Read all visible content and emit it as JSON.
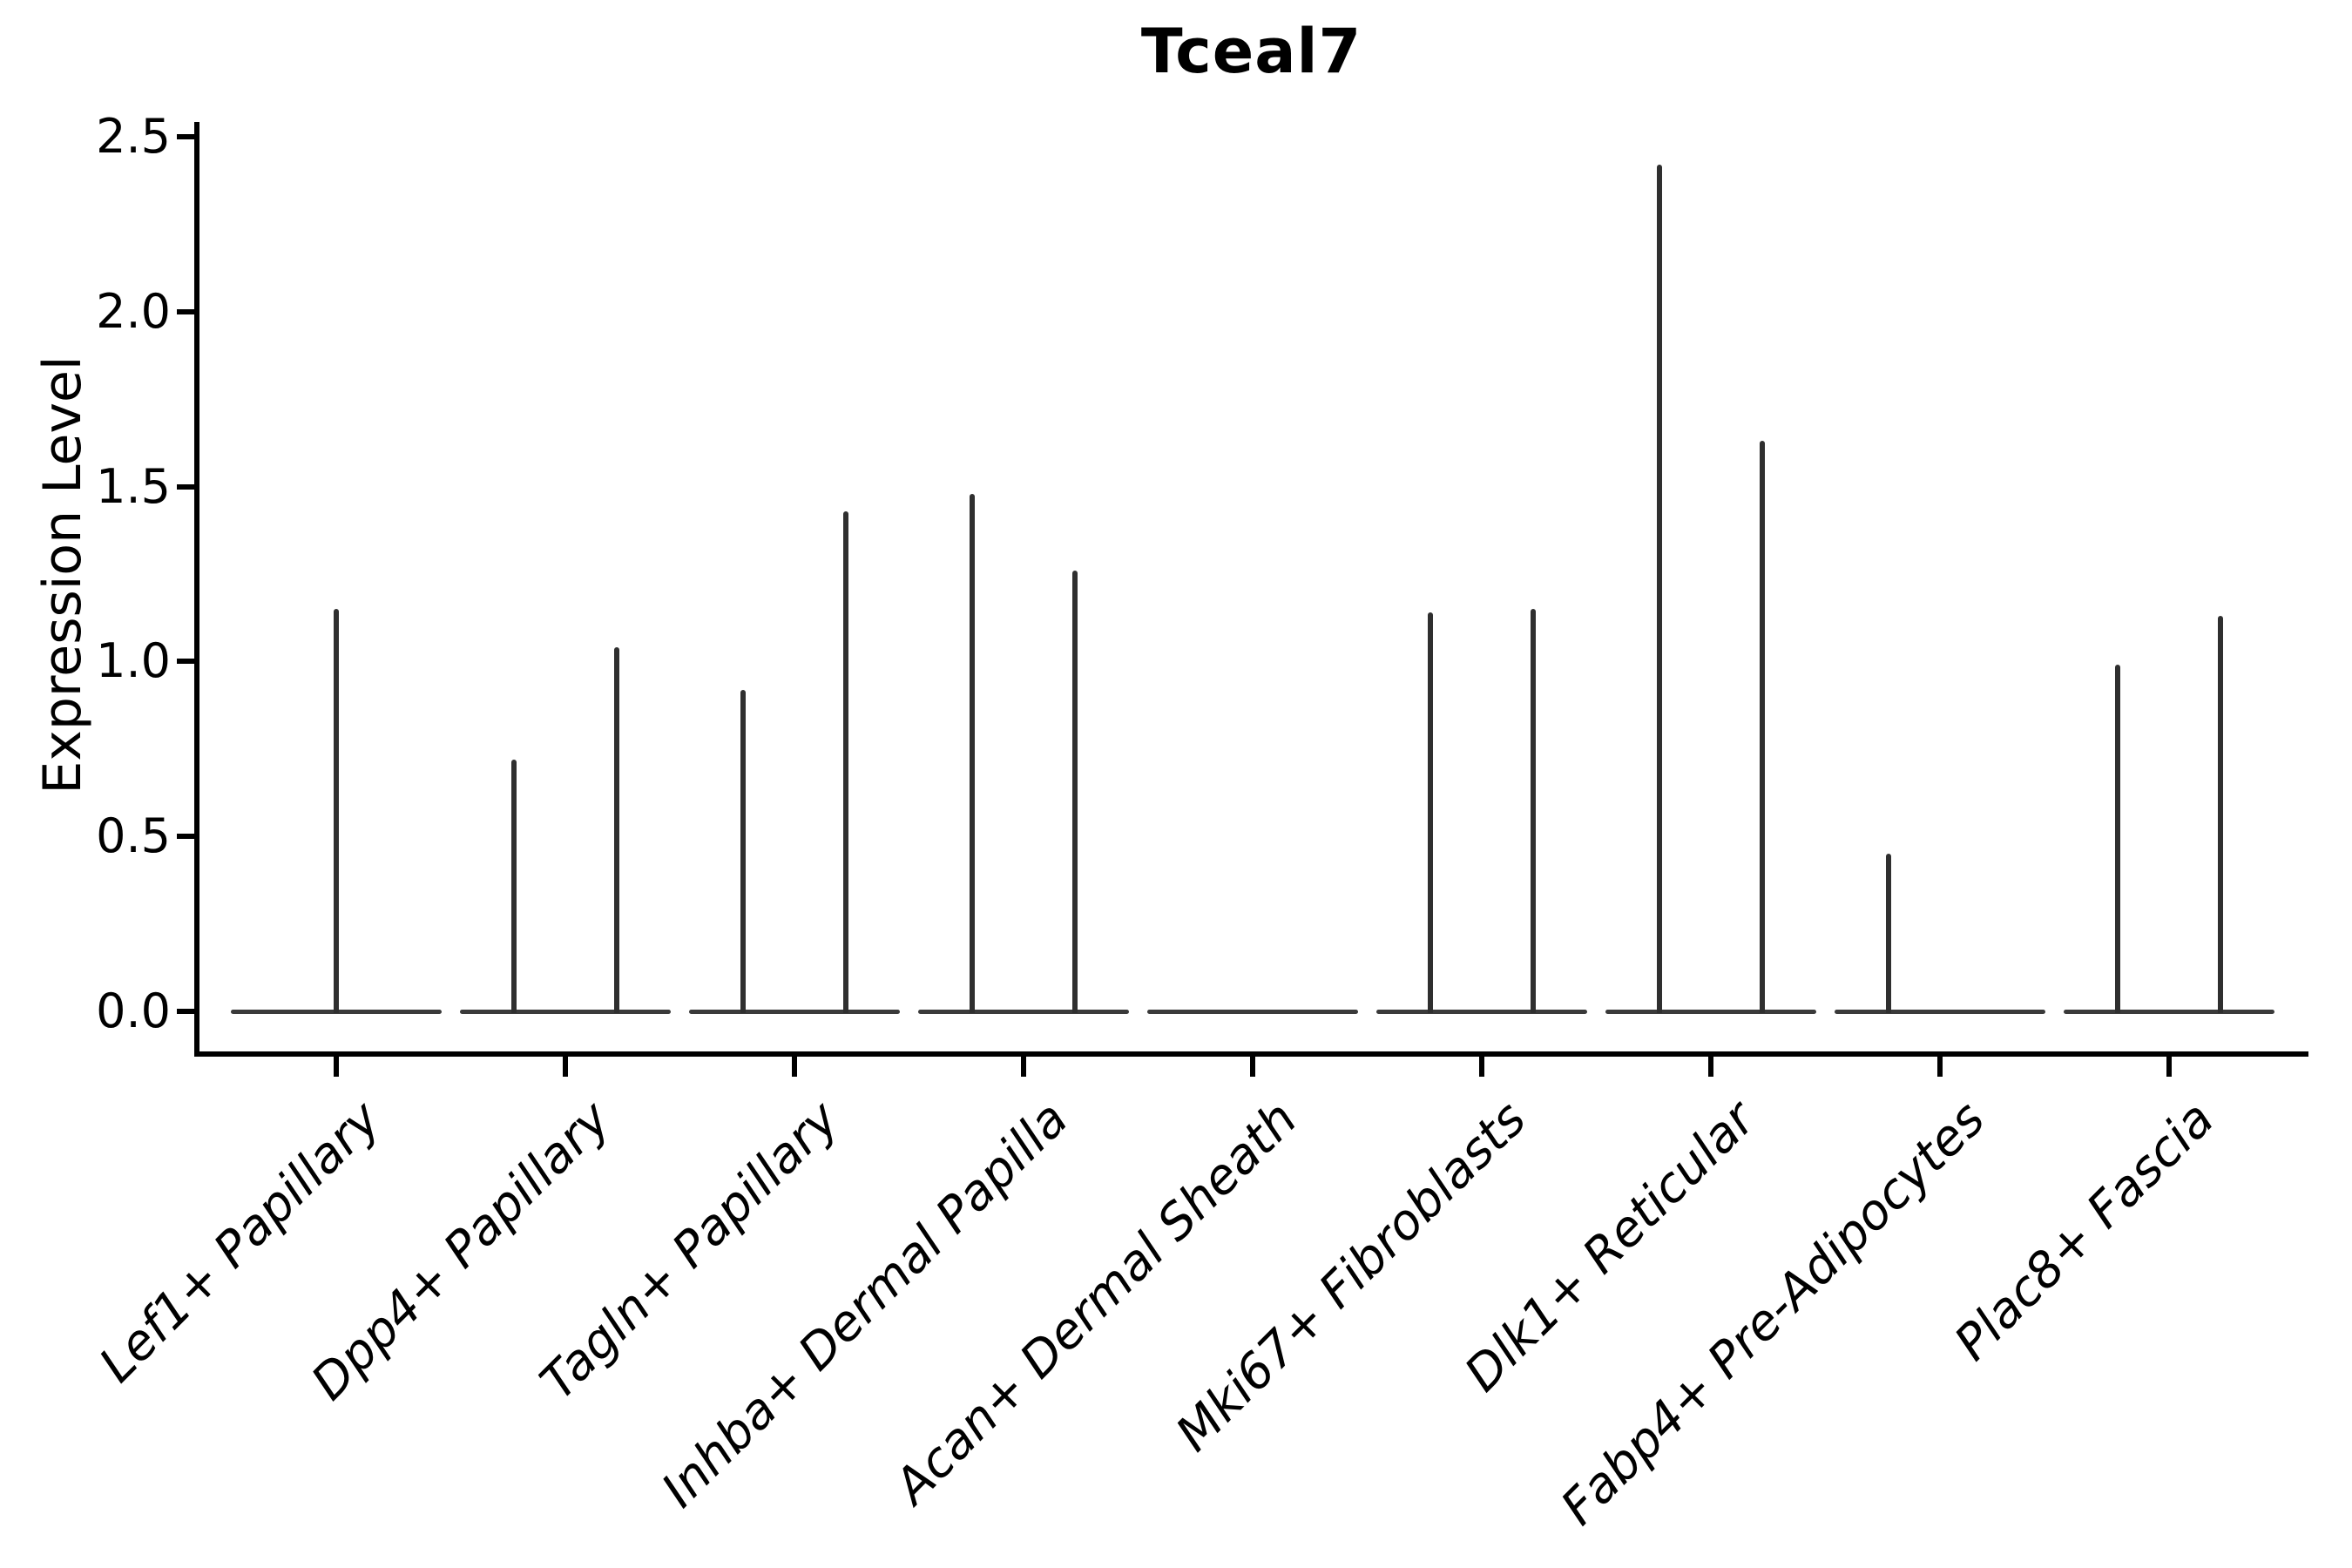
{
  "chart_data": {
    "type": "violin",
    "title": "Tceal7",
    "xlabel": "",
    "ylabel": "Expression Level",
    "ylim": [
      0,
      2.5
    ],
    "ytick_labels": [
      "0.0",
      "0.5",
      "1.0",
      "1.5",
      "2.0",
      "2.5"
    ],
    "ytick_values": [
      0,
      0.5,
      1,
      1.5,
      2,
      2.5
    ],
    "grid": false,
    "legend_position": "none",
    "categories": [
      "Lef1+ Papillary",
      "Dpp4+ Papillary",
      "Tagln+ Papillary",
      "Inhba+ Dermal Papilla",
      "Acan+ Dermal Sheath",
      "Mki67+ Fibroblasts",
      "Dlk1+ Reticular",
      "Fabp4+ Pre-Adipocytes",
      "Plac8+ Fascia"
    ],
    "violins": [
      {
        "category": "Lef1+ Papillary",
        "baseline_value": 0.0,
        "spikes": [
          {
            "pos": "center",
            "max": 1.15
          }
        ]
      },
      {
        "category": "Dpp4+ Papillary",
        "baseline_value": 0.0,
        "spikes": [
          {
            "pos": "left",
            "max": 0.72
          },
          {
            "pos": "right",
            "max": 1.04
          }
        ]
      },
      {
        "category": "Tagln+ Papillary",
        "baseline_value": 0.0,
        "spikes": [
          {
            "pos": "left",
            "max": 0.92
          },
          {
            "pos": "right",
            "max": 1.43
          }
        ]
      },
      {
        "category": "Inhba+ Dermal Papilla",
        "baseline_value": 0.0,
        "spikes": [
          {
            "pos": "left",
            "max": 1.48
          },
          {
            "pos": "right",
            "max": 1.26
          }
        ]
      },
      {
        "category": "Acan+ Dermal Sheath",
        "baseline_value": 0.0,
        "spikes": []
      },
      {
        "category": "Mki67+ Fibroblasts",
        "baseline_value": 0.0,
        "spikes": [
          {
            "pos": "left",
            "max": 1.14
          },
          {
            "pos": "right",
            "max": 1.15
          }
        ]
      },
      {
        "category": "Dlk1+ Reticular",
        "baseline_value": 0.0,
        "spikes": [
          {
            "pos": "left",
            "max": 2.42
          },
          {
            "pos": "right",
            "max": 1.63
          }
        ]
      },
      {
        "category": "Fabp4+ Pre-Adipocytes",
        "baseline_value": 0.0,
        "spikes": [
          {
            "pos": "left",
            "max": 0.45
          }
        ]
      },
      {
        "category": "Plac8+ Fascia",
        "baseline_value": 0.0,
        "spikes": [
          {
            "pos": "left",
            "max": 0.99
          },
          {
            "pos": "right",
            "max": 1.13
          }
        ]
      }
    ],
    "colors": {
      "ink": "#000000",
      "spike": "#2f2f2f",
      "baseline": "#3a3a3a",
      "background": "#ffffff"
    }
  }
}
